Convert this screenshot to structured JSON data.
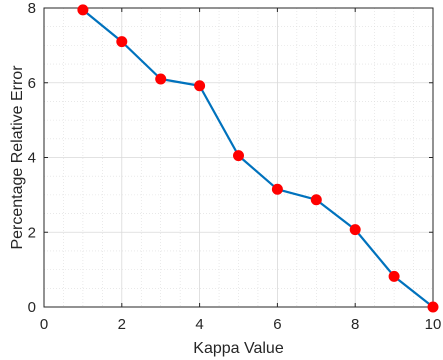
{
  "chart_data": {
    "type": "line",
    "title": "",
    "xlabel": "Kappa Value",
    "ylabel": "Percentage Relative Error",
    "xlim": [
      0,
      10
    ],
    "ylim": [
      0,
      8
    ],
    "xticks": [
      0,
      2,
      4,
      6,
      8,
      10
    ],
    "yticks": [
      0,
      2,
      4,
      6,
      8
    ],
    "grid": true,
    "minor_grid": true,
    "line_color": "#0072BD",
    "marker_color": "#FF0000",
    "series": [
      {
        "x": [
          1,
          2,
          3,
          4,
          5,
          6,
          7,
          8,
          9,
          10
        ],
        "y": [
          7.95,
          7.1,
          6.1,
          5.92,
          4.05,
          3.15,
          2.87,
          2.07,
          0.82,
          0.0
        ]
      }
    ]
  }
}
